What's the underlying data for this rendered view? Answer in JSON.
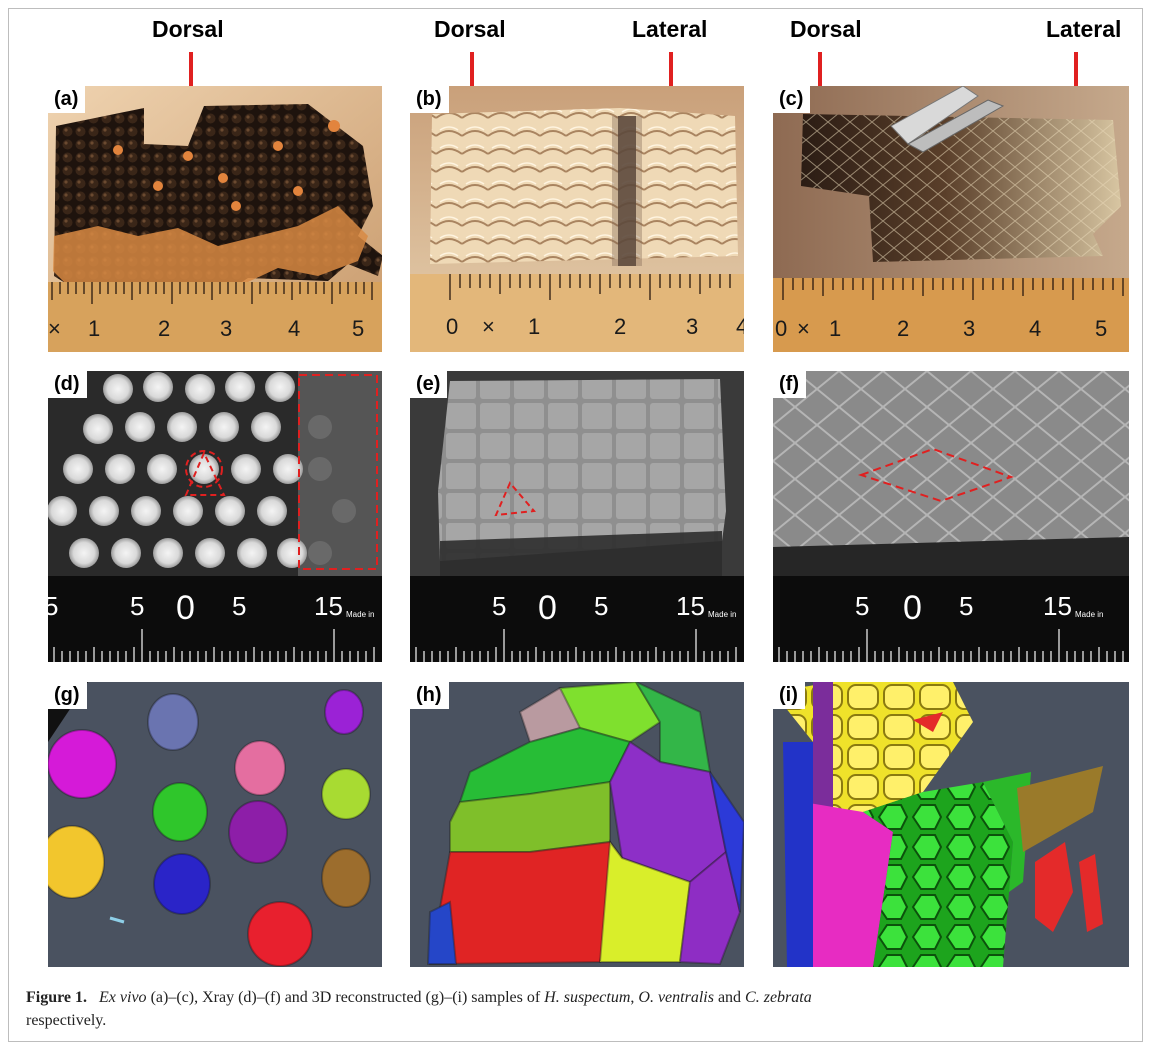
{
  "figure": {
    "column_labels": {
      "a_dorsal": "Dorsal",
      "b_dorsal": "Dorsal",
      "b_lateral": "Lateral",
      "c_dorsal": "Dorsal",
      "c_lateral": "Lateral"
    },
    "panels": [
      {
        "id": "a",
        "tag": "(a)",
        "kind": "ex vivo photograph",
        "ruler_ticks": [
          "×",
          "1",
          "2",
          "3",
          "4",
          "5"
        ]
      },
      {
        "id": "b",
        "tag": "(b)",
        "kind": "ex vivo photograph",
        "ruler_ticks": [
          "0",
          "×",
          "1",
          "2",
          "3",
          "4"
        ]
      },
      {
        "id": "c",
        "tag": "(c)",
        "kind": "ex vivo photograph",
        "ruler_ticks": [
          "0",
          "×",
          "1",
          "2",
          "3",
          "4",
          "5"
        ]
      },
      {
        "id": "d",
        "tag": "(d)",
        "kind": "xray",
        "ruler_ticks": [
          "5",
          "5",
          "0",
          "5",
          "15"
        ],
        "ruler_brand": "Made in"
      },
      {
        "id": "e",
        "tag": "(e)",
        "kind": "xray",
        "ruler_ticks": [
          "5",
          "0",
          "5",
          "15"
        ],
        "ruler_brand": "Made in"
      },
      {
        "id": "f",
        "tag": "(f)",
        "kind": "xray",
        "ruler_ticks": [
          "5",
          "0",
          "5",
          "15"
        ],
        "ruler_brand": "Made in"
      },
      {
        "id": "g",
        "tag": "(g)",
        "kind": "3D reconstruction"
      },
      {
        "id": "h",
        "tag": "(h)",
        "kind": "3D reconstruction"
      },
      {
        "id": "i",
        "tag": "(i)",
        "kind": "3D reconstruction"
      }
    ],
    "caption": {
      "label": "Figure 1.",
      "part1": "Ex vivo",
      "part2": " (a)–(c), Xray (d)–(f) and 3D reconstructed (g)–(i) samples of ",
      "species1": "H. suspectum",
      "sep1": ", ",
      "species2": "O. ventralis",
      "sep2": " and ",
      "species3": "C. zebrata",
      "part3": "",
      "line2": "respectively."
    },
    "colors": {
      "arrow": "#e02020",
      "annotation": "#e02020",
      "render_bg": "#4a5260"
    }
  }
}
